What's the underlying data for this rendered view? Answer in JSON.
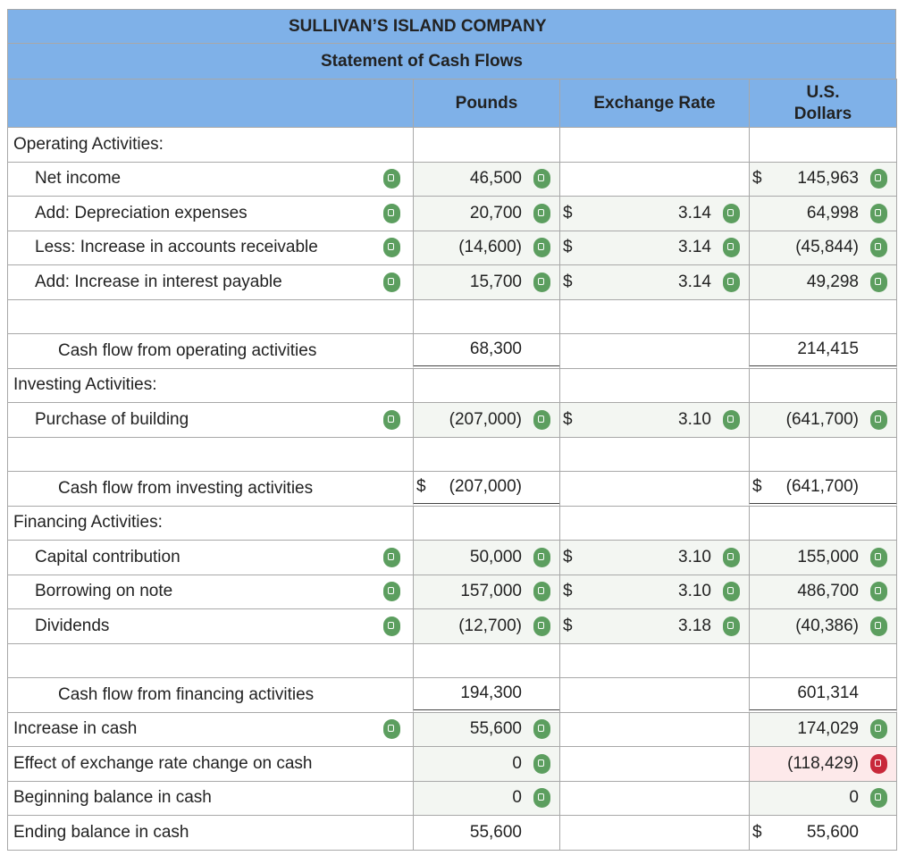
{
  "header": {
    "company": "SULLIVAN’S ISLAND COMPANY",
    "statement": "Statement of Cash Flows",
    "columns": [
      "Pounds",
      "Exchange Rate",
      "U.S. Dollars"
    ]
  },
  "rows": [
    {
      "label": "Operating Activities:"
    },
    {
      "label": "Net income",
      "pounds": "46,500",
      "usd_prefix": "$",
      "usd": "145,963"
    },
    {
      "label": "Add: Depreciation expenses",
      "pounds": "20,700",
      "rate_prefix": "$",
      "rate": "3.14",
      "usd": "64,998"
    },
    {
      "label": "Less: Increase in accounts receivable",
      "pounds": "(14,600)",
      "rate_prefix": "$",
      "rate": "3.14",
      "usd": "(45,844)"
    },
    {
      "label": "Add: Increase in interest payable",
      "pounds": "15,700",
      "rate_prefix": "$",
      "rate": "3.14",
      "usd": "49,298"
    },
    {},
    {
      "label": "Cash flow from operating activities",
      "pounds": "68,300",
      "usd": "214,415"
    },
    {
      "label": "Investing Activities:"
    },
    {
      "label": "Purchase of building",
      "pounds": "(207,000)",
      "rate_prefix": "$",
      "rate": "3.10",
      "usd": "(641,700)"
    },
    {},
    {
      "label": "Cash flow from investing activities",
      "pounds_prefix": "$",
      "pounds": "(207,000)",
      "usd_prefix": "$",
      "usd": "(641,700)"
    },
    {
      "label": "Financing Activities:"
    },
    {
      "label": "Capital contribution",
      "pounds": "50,000",
      "rate_prefix": "$",
      "rate": "3.10",
      "usd": "155,000"
    },
    {
      "label": "Borrowing on note",
      "pounds": "157,000",
      "rate_prefix": "$",
      "rate": "3.10",
      "usd": "486,700"
    },
    {
      "label": "Dividends",
      "pounds": "(12,700)",
      "rate_prefix": "$",
      "rate": "3.18",
      "usd": "(40,386)"
    },
    {},
    {
      "label": "Cash flow from financing activities",
      "pounds": "194,300",
      "usd": "601,314"
    },
    {
      "label": "Increase in cash",
      "pounds": "55,600",
      "usd": "174,029"
    },
    {
      "label": "Effect of exchange rate change on cash",
      "pounds": "0",
      "usd": "(118,429)"
    },
    {
      "label": "Beginning balance in cash",
      "pounds": "0",
      "usd": "0"
    },
    {
      "label": "Ending balance in cash",
      "pounds": "55,600",
      "usd_prefix": "$",
      "usd": "55,600"
    }
  ]
}
